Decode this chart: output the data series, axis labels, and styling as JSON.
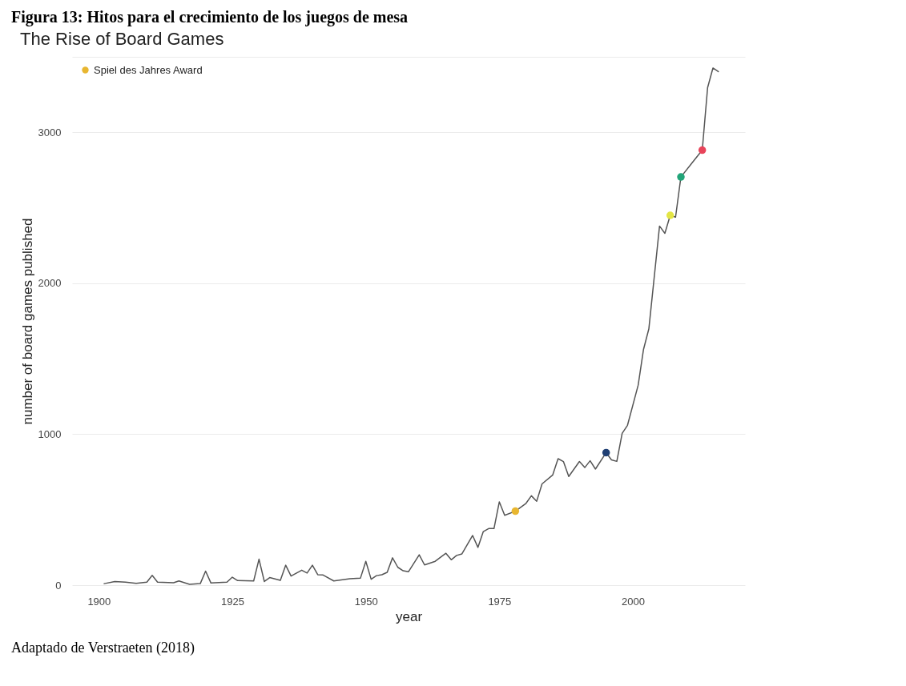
{
  "chart_data": {
    "type": "line",
    "title": "Figura 13: Hitos para el crecimiento de los juegos de mesa",
    "subtitle": "The Rise of Board Games",
    "xlabel": "year",
    "ylabel": "number of board games published",
    "annotations": [
      "Adaptado de Verstraeten (2018)"
    ],
    "xlim": [
      1895,
      2021
    ],
    "xticks": [
      1900,
      1925,
      1950,
      1975,
      2000
    ],
    "ylim": [
      0,
      3500
    ],
    "yticks": [
      0,
      1000,
      2000,
      3000,
      {
        "value": 3500,
        "label": null
      }
    ],
    "grid": "y",
    "legend": "top left",
    "series": [
      {
        "color": "#555555",
        "x": [
          1901,
          1903,
          1905,
          1907,
          1909,
          1910,
          1911,
          1914,
          1915,
          1917,
          1919,
          1920,
          1921,
          1924,
          1925,
          1926,
          1929,
          1930,
          1931,
          1932,
          1934,
          1935,
          1936,
          1938,
          1939,
          1940,
          1941,
          1942,
          1944,
          1947,
          1949,
          1950,
          1951,
          1952,
          1953,
          1954,
          1955,
          1956,
          1957,
          1958,
          1960,
          1961,
          1963,
          1965,
          1966,
          1967,
          1968,
          1970,
          1971,
          1972,
          1973,
          1974,
          1975,
          1976,
          1978,
          1980,
          1981,
          1982,
          1983,
          1985,
          1986,
          1987,
          1988,
          1990,
          1991,
          1992,
          1993,
          1995,
          1996,
          1997,
          1998,
          1999,
          2001,
          2002,
          2003,
          2005,
          2006,
          2007,
          2008,
          2009,
          2011,
          2013,
          2014,
          2015,
          2016
        ],
        "values": [
          10,
          24,
          20,
          12,
          20,
          65,
          20,
          16,
          28,
          5,
          10,
          93,
          14,
          20,
          53,
          30,
          28,
          172,
          24,
          50,
          32,
          132,
          60,
          99,
          80,
          132,
          69,
          67,
          28,
          43,
          47,
          158,
          39,
          63,
          69,
          85,
          181,
          118,
          95,
          89,
          201,
          134,
          158,
          211,
          168,
          197,
          207,
          329,
          250,
          355,
          375,
          375,
          552,
          463,
          490,
          542,
          592,
          556,
          671,
          730,
          838,
          819,
          720,
          819,
          779,
          824,
          769,
          878,
          830,
          820,
          1006,
          1059,
          1325,
          1562,
          1698,
          2379,
          2331,
          2450,
          2438,
          2704,
          2793,
          2882,
          3296,
          3426,
          3402
        ]
      },
      {
        "type": "scatter",
        "marker": "circle",
        "name": "Spiel des Jahres Award",
        "color": "#e8b630",
        "x": [
          1978
        ],
        "values": [
          490
        ]
      },
      {
        "type": "scatter",
        "marker": "circle",
        "color": "#1f3f73",
        "x": [
          1995
        ],
        "values": [
          878
        ]
      },
      {
        "type": "scatter",
        "marker": "circle",
        "color": "#e3e545",
        "x": [
          2007
        ],
        "values": [
          2450
        ]
      },
      {
        "type": "scatter",
        "marker": "circle",
        "color": "#22a579",
        "x": [
          2009
        ],
        "values": [
          2704
        ]
      },
      {
        "type": "scatter",
        "marker": "circle",
        "color": "#e8445a",
        "x": [
          2013
        ],
        "values": [
          2882
        ]
      }
    ]
  }
}
